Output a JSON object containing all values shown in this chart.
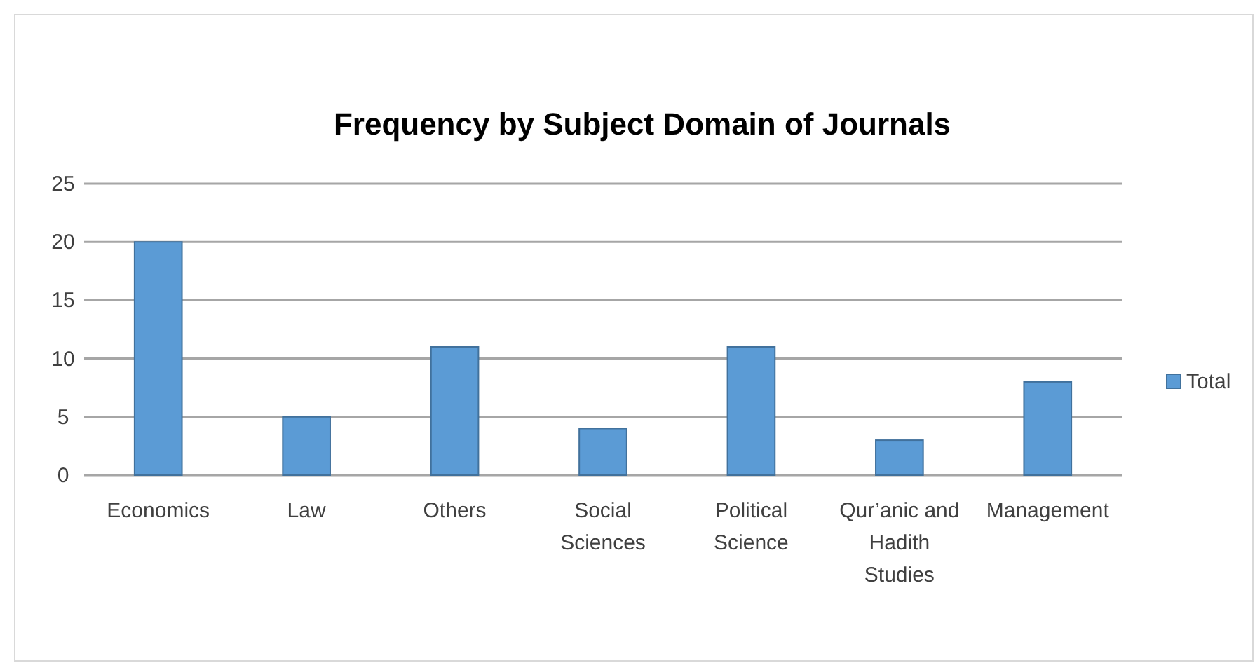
{
  "chart_data": {
    "type": "bar",
    "title": "Frequency by Subject Domain of Journals",
    "categories": [
      "Economics",
      "Law",
      "Others",
      "Social Sciences",
      "Political Science",
      "Qur’anic and Hadith Studies",
      "Management"
    ],
    "series": [
      {
        "name": "Total",
        "color": "#5b9bd5",
        "values": [
          20,
          5,
          11,
          4,
          11,
          3,
          8
        ]
      }
    ],
    "ylim": [
      0,
      25
    ],
    "yticks": [
      0,
      5,
      10,
      15,
      20,
      25
    ],
    "grid": "y",
    "legend": "right"
  }
}
